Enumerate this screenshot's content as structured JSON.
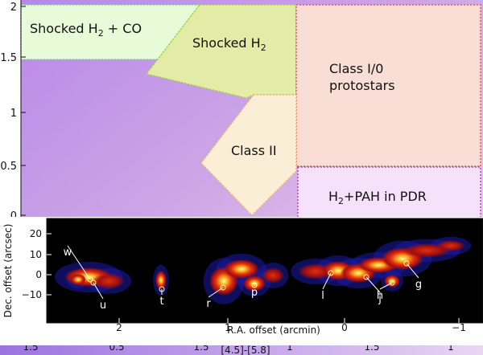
{
  "chart_data": [
    {
      "type": "diagram",
      "xlabel": "[4.5]-[5.8]",
      "ylim": [
        0,
        2
      ],
      "y_ticks": [
        "0",
        "0.5",
        "1",
        "1.5",
        "2"
      ],
      "x_ticks_partial": [
        "0.5",
        "1",
        "1.5"
      ],
      "regions": [
        {
          "name": "Shocked H2 + CO",
          "sub": "2",
          "color": "#e7fbd9"
        },
        {
          "name": "Shocked H2",
          "sub": "2",
          "color": "#e6f5a0"
        },
        {
          "name": "Class I/0 protostars",
          "color": "#f9ded6"
        },
        {
          "name": "Class II",
          "color": "#fbeed6"
        },
        {
          "name": "H2+PAH in PDR",
          "sub": "2",
          "color": "#f6e1fa"
        }
      ]
    },
    {
      "type": "heatmap",
      "xlabel": "R.A. offset (arcmin)",
      "ylabel": "Dec. offset (arcsec)",
      "x_ticks": [
        "2",
        "1",
        "0",
        "−1"
      ],
      "y_ticks": [
        "20",
        "10",
        "0",
        "−10"
      ],
      "knots": [
        "w",
        "u",
        "t",
        "r",
        "p",
        "l",
        "j",
        "h",
        "g"
      ]
    }
  ],
  "text": {
    "shocked_co": "Shocked H",
    "shocked_co_sub": "2",
    "shocked_co_tail": " + CO",
    "shocked": "Shocked H",
    "shocked_sub": "2",
    "class10_1": "Class I/0",
    "class10_2": "protostars",
    "class2": "Class II",
    "pdr": "H",
    "pdr_sub": "2",
    "pdr_tail": "+PAH in PDR"
  }
}
